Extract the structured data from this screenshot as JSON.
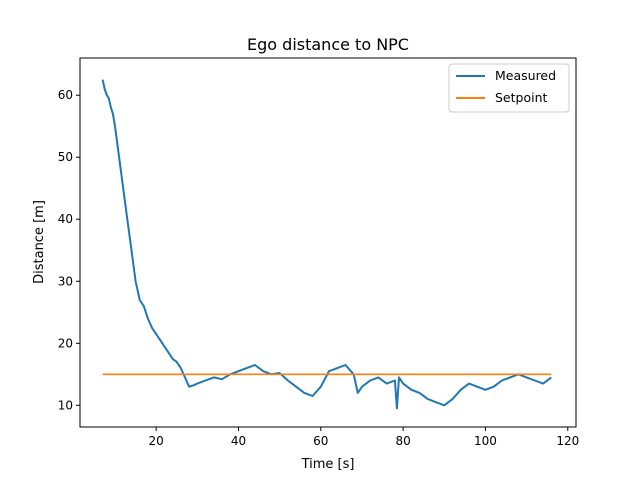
{
  "chart_data": {
    "type": "line",
    "title": "Ego distance to NPC",
    "xlabel": "Time [s]",
    "ylabel": "Distance [m]",
    "xlim": [
      1.5,
      122
    ],
    "ylim": [
      6.5,
      66
    ],
    "xticks": [
      20,
      40,
      60,
      80,
      100,
      120
    ],
    "yticks": [
      10,
      20,
      30,
      40,
      50,
      60
    ],
    "grid": false,
    "legend_position": "top-right",
    "series": [
      {
        "name": "Measured",
        "color": "#1f77b4",
        "x": [
          7,
          7.5,
          8,
          8.5,
          9,
          9.5,
          10,
          11,
          12,
          13,
          14,
          15,
          16,
          17,
          18,
          19,
          20,
          21,
          22,
          23,
          24,
          25,
          26,
          27,
          28,
          29,
          30,
          32,
          34,
          36,
          38,
          40,
          42,
          44,
          46,
          48,
          50,
          52,
          54,
          56,
          58,
          60,
          62,
          64,
          66,
          68,
          69,
          70,
          72,
          74,
          76,
          78,
          78.5,
          79,
          80,
          82,
          84,
          86,
          88,
          90,
          92,
          94,
          96,
          98,
          100,
          102,
          104,
          106,
          108,
          110,
          112,
          114,
          116
        ],
        "y": [
          62.5,
          61,
          60,
          59.5,
          58,
          57,
          55,
          50,
          45,
          40,
          35,
          30,
          27,
          26,
          24,
          22.5,
          21.5,
          20.5,
          19.5,
          18.5,
          17.5,
          17,
          16,
          14.5,
          13,
          13.2,
          13.5,
          14,
          14.5,
          14.2,
          15,
          15.5,
          16,
          16.5,
          15.5,
          15,
          15.2,
          14,
          13,
          12,
          11.5,
          13,
          15.5,
          16,
          16.5,
          15,
          12,
          13,
          14,
          14.5,
          13.5,
          14,
          9.5,
          14.5,
          13.5,
          12.5,
          12,
          11,
          10.5,
          10,
          11,
          12.5,
          13.5,
          13,
          12.5,
          13,
          14,
          14.5,
          15,
          14.5,
          14,
          13.5,
          14.5
        ]
      },
      {
        "name": "Setpoint",
        "color": "#ff7f0e",
        "x": [
          7,
          116
        ],
        "y": [
          15,
          15
        ]
      }
    ]
  }
}
